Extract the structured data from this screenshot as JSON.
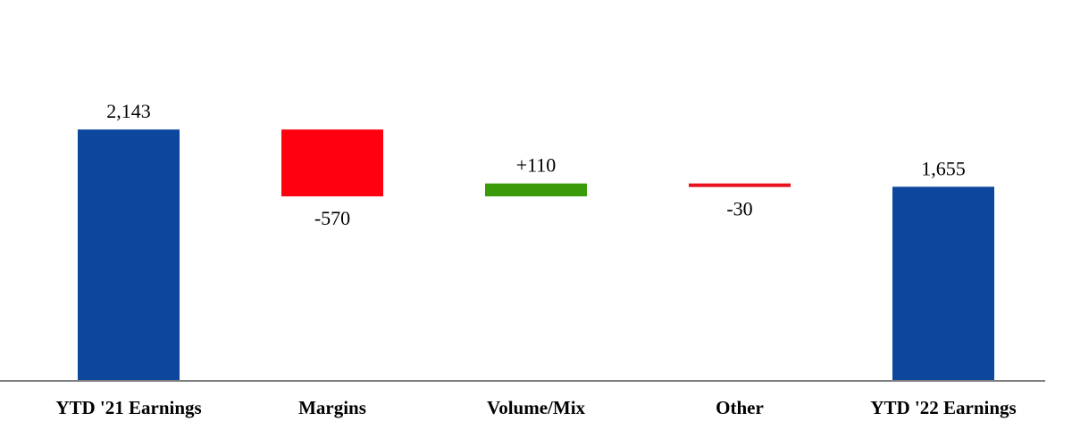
{
  "chart_data": {
    "type": "bar",
    "subtype": "waterfall",
    "title": "",
    "xlabel": "",
    "ylabel": "",
    "ylim": [
      0,
      2600
    ],
    "grid": false,
    "legend": "none",
    "categories": [
      "YTD '21 Earnings",
      "Margins",
      "Volume/Mix",
      "Other",
      "YTD '22 Earnings"
    ],
    "steps": [
      {
        "category": "YTD '21 Earnings",
        "kind": "total",
        "value": 2143,
        "label": "2,143",
        "color": "#0C479D"
      },
      {
        "category": "Margins",
        "kind": "delta",
        "value": -570,
        "label": "-570",
        "color": "#FF0011"
      },
      {
        "category": "Volume/Mix",
        "kind": "delta",
        "value": 110,
        "label": "+110",
        "color": "#3A9A07"
      },
      {
        "category": "Other",
        "kind": "delta",
        "value": -30,
        "label": "-30",
        "color": "#E8101E"
      },
      {
        "category": "YTD '22 Earnings",
        "kind": "total",
        "value": 1655,
        "label": "1,655",
        "color": "#0C479D"
      }
    ],
    "axis_color": "#7F7F7F"
  }
}
